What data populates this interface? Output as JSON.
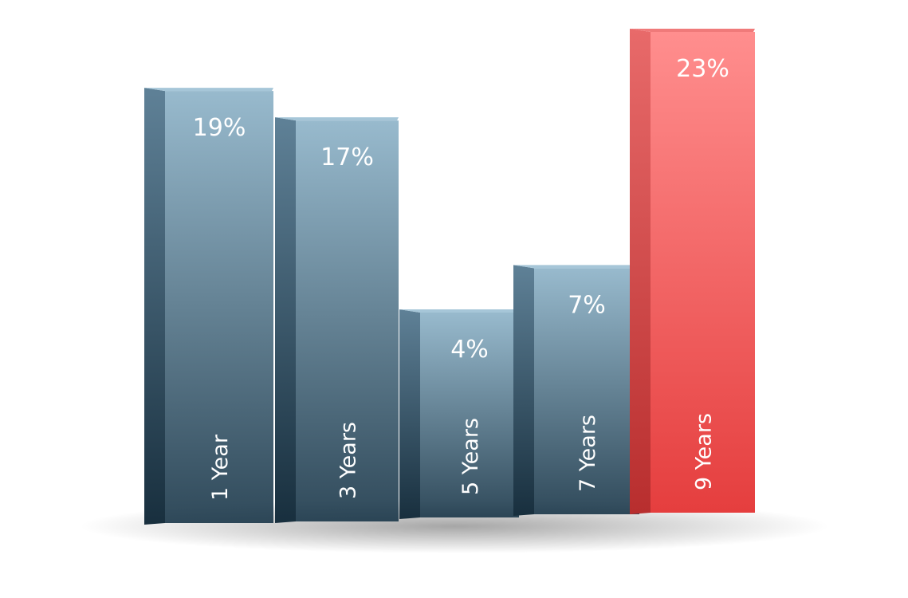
{
  "chart_data": {
    "type": "bar",
    "categories": [
      "1 Year",
      "3 Years",
      "5 Years",
      "7 Years",
      "9 Years"
    ],
    "values": [
      19,
      17,
      4,
      7,
      23
    ],
    "value_labels": [
      "19%",
      "17%",
      "4%",
      "7%",
      "23%"
    ],
    "highlight_index": 4,
    "ylim": [
      0,
      23
    ],
    "grid": false,
    "legend": "none",
    "colors": {
      "bar_front_top": "#8fb4c9",
      "bar_front_bottom": "#1e3a4c",
      "bar_side": "#2c4a5e",
      "bar_top": "#a6c6d8",
      "highlight_front_top": "#ff8e8e",
      "highlight_front_bottom": "#e53e3e",
      "highlight_side": "#c83636",
      "highlight_top": "#f07a7a",
      "label_text": "#ffffff"
    }
  }
}
